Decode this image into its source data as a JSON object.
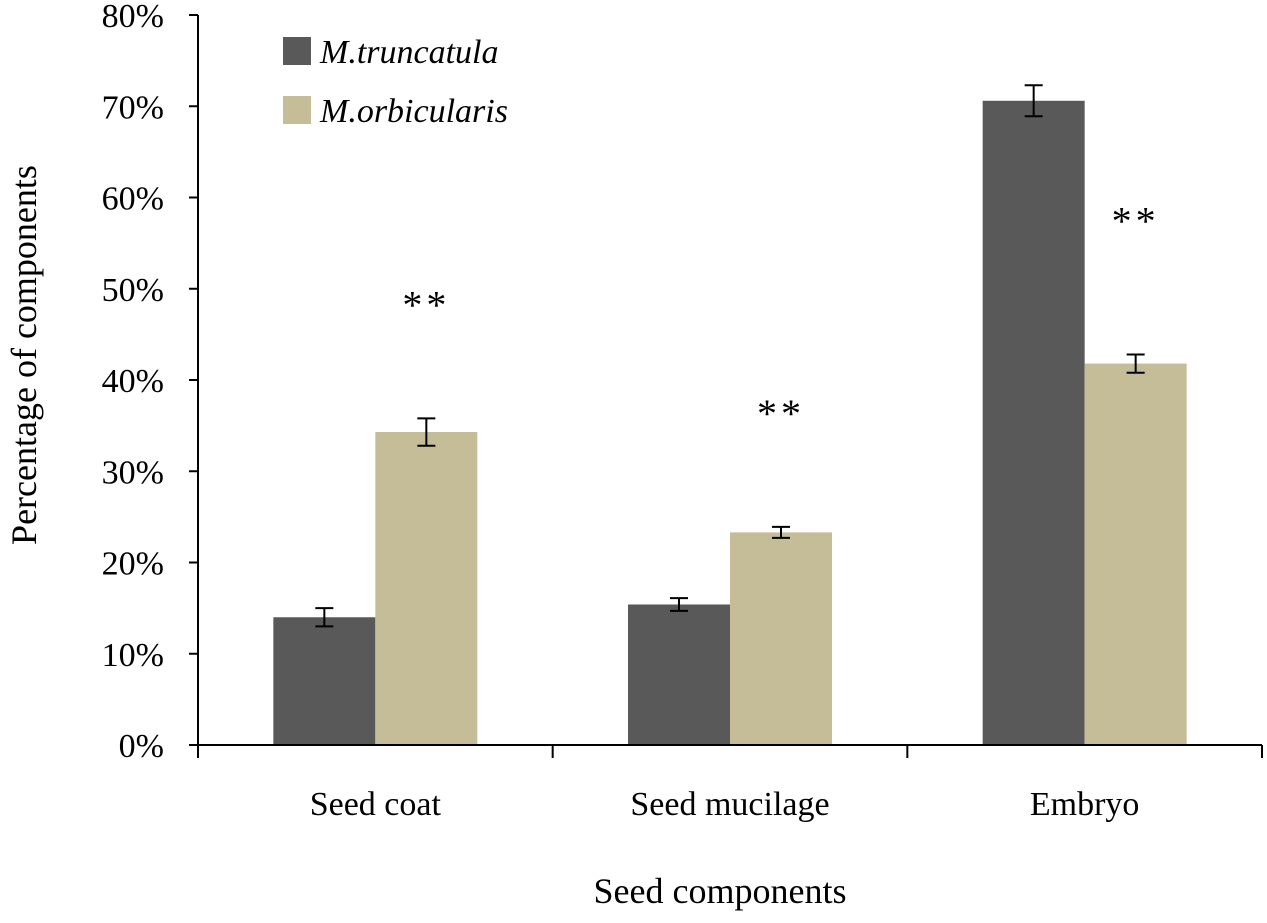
{
  "chart_data": {
    "type": "bar",
    "title": "",
    "xlabel": "Seed components",
    "ylabel": "Percentage of components",
    "ylim": [
      0,
      80
    ],
    "y_tick_step": 10,
    "y_tick_suffix": "%",
    "grid": false,
    "legend_position": "top-left",
    "categories": [
      "Seed coat",
      "Seed mucilage",
      "Embryo"
    ],
    "series": [
      {
        "name": "M.truncatula",
        "color": "#595959",
        "values": [
          14.0,
          15.4,
          70.6
        ],
        "errors": [
          1.0,
          0.7,
          1.7
        ]
      },
      {
        "name": "M.orbicularis",
        "color": "#c4bd97",
        "values": [
          34.3,
          23.3,
          41.8
        ],
        "errors": [
          1.5,
          0.6,
          1.0
        ]
      }
    ],
    "significance": [
      "**",
      "**",
      "**"
    ]
  }
}
